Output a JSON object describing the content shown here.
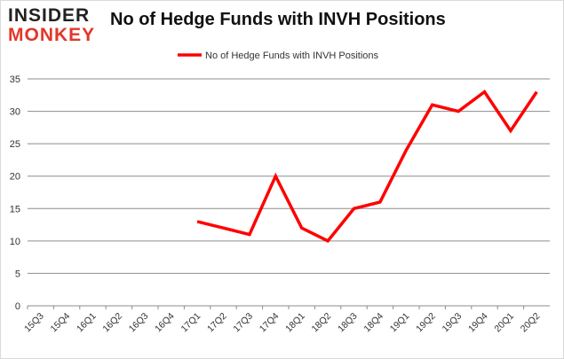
{
  "logo": {
    "line1": "INSIDER",
    "line2": "MONKEY"
  },
  "chart_data": {
    "type": "line",
    "title": "No of Hedge Funds with INVH Positions",
    "legend": [
      "No of Hedge Funds with INVH Positions"
    ],
    "legend_position": "top",
    "categories": [
      "15Q3",
      "15Q4",
      "16Q1",
      "16Q2",
      "16Q3",
      "16Q4",
      "17Q1",
      "17Q2",
      "17Q3",
      "17Q4",
      "18Q1",
      "18Q2",
      "18Q3",
      "18Q4",
      "19Q1",
      "19Q2",
      "19Q3",
      "19Q4",
      "20Q1",
      "20Q2"
    ],
    "series": [
      {
        "name": "No of Hedge Funds with INVH Positions",
        "color": "#ff0000",
        "values": [
          null,
          null,
          null,
          null,
          null,
          null,
          13,
          12,
          11,
          20,
          12,
          10,
          15,
          16,
          24,
          31,
          30,
          33,
          27,
          33
        ]
      }
    ],
    "ylim": [
      0,
      35
    ],
    "yticks": [
      0,
      5,
      10,
      15,
      20,
      25,
      30,
      35
    ],
    "grid": true,
    "xlabel": "",
    "ylabel": ""
  }
}
